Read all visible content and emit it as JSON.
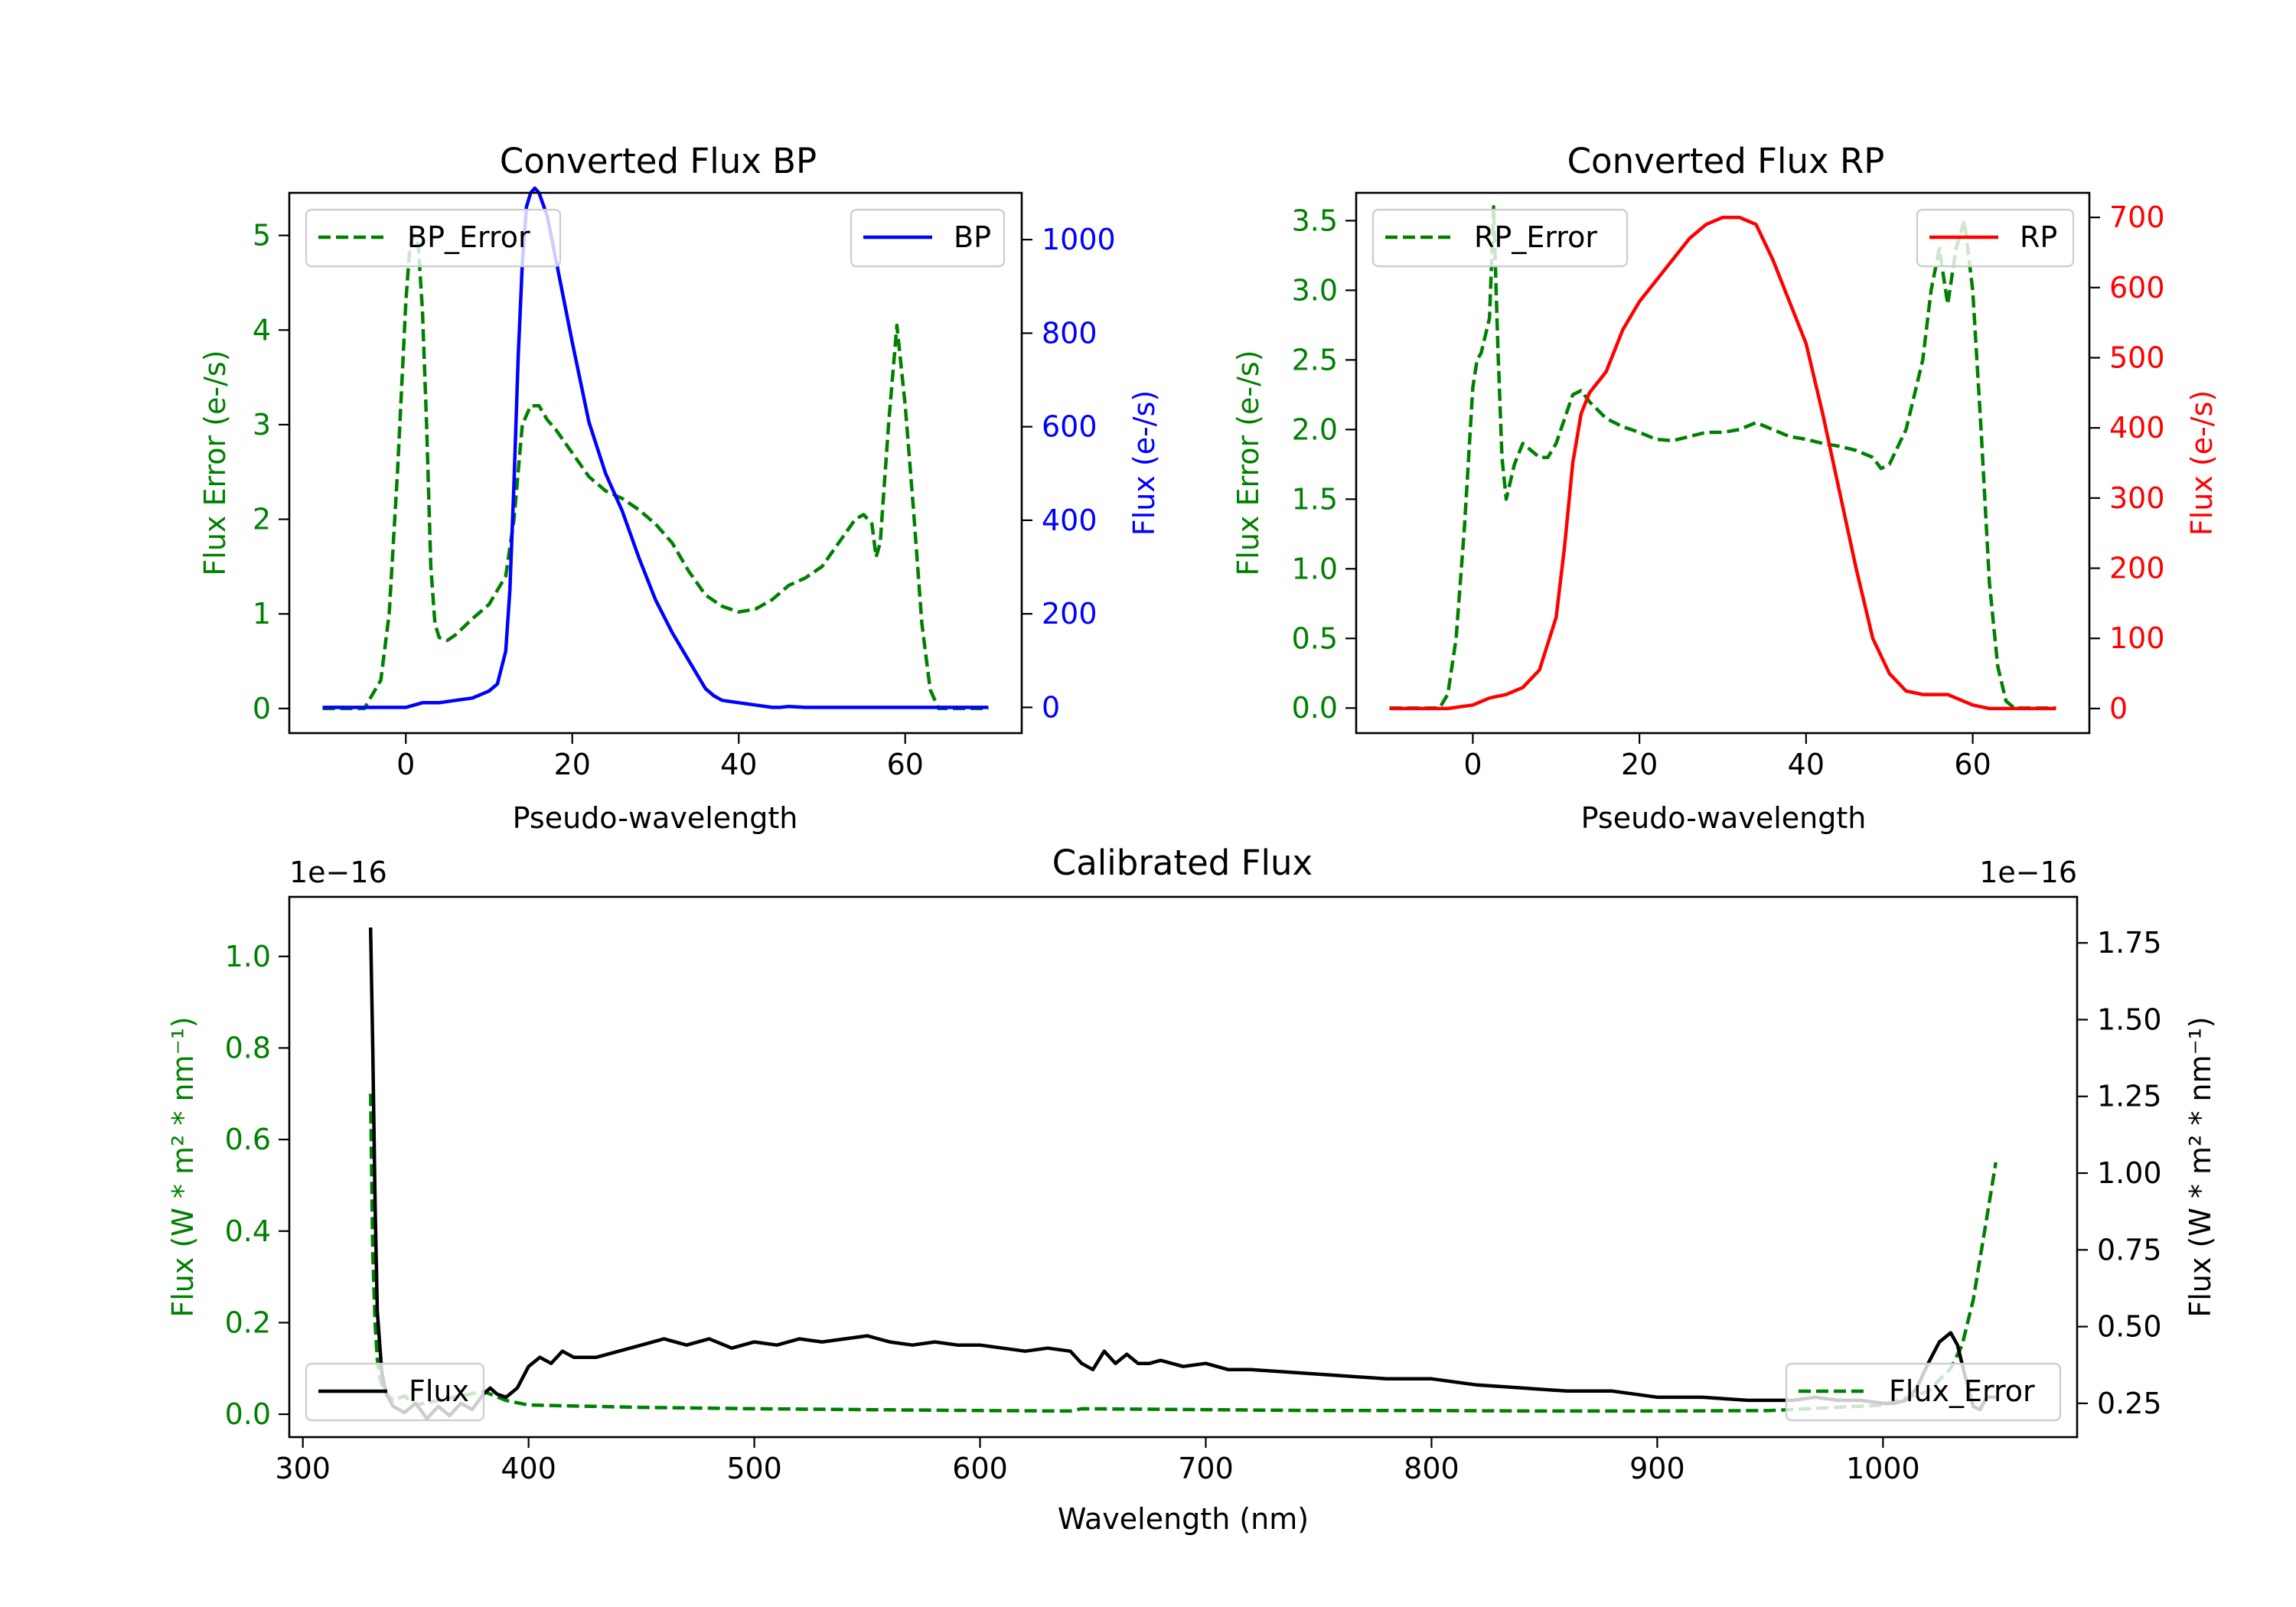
{
  "colors": {
    "bp": "#0000ff",
    "rp": "#ff0000",
    "error": "#008000",
    "flux": "#000000"
  },
  "chart_data": [
    {
      "id": "bp",
      "type": "line",
      "title": "Converted Flux BP",
      "xlabel": "Pseudo-wavelength",
      "ylabel_left": "Flux Error (e-/s)",
      "ylabel_right": "Flux (e-/s)",
      "xlim": [
        -14,
        74
      ],
      "ylim_left": [
        -0.26,
        5.45
      ],
      "ylim_right": [
        -55,
        1100
      ],
      "xticks": [
        "0",
        "20",
        "40",
        "60"
      ],
      "yticks_left": [
        "0",
        "1",
        "2",
        "3",
        "4",
        "5"
      ],
      "yticks_right": [
        "0",
        "200",
        "400",
        "600",
        "800",
        "1000"
      ],
      "legend_left": "BP_Error",
      "legend_right": "BP",
      "series": [
        {
          "name": "BP_Error",
          "axis": "left",
          "style": "dashed",
          "color": "#008000",
          "x": [
            -10,
            -5,
            -3,
            -2,
            -1,
            0,
            0.5,
            1,
            1.5,
            2,
            2.5,
            3,
            3.5,
            4,
            5,
            6,
            8,
            10,
            12,
            13,
            14,
            15,
            16,
            17,
            18,
            20,
            22,
            24,
            26,
            28,
            30,
            32,
            34,
            36,
            38,
            40,
            42,
            44,
            46,
            48,
            50,
            52,
            54,
            55,
            56,
            56.5,
            57,
            58,
            59,
            60,
            61,
            62,
            63,
            64,
            65,
            70
          ],
          "y": [
            0,
            0,
            0.3,
            1.0,
            2.5,
            4.3,
            4.9,
            5.0,
            4.9,
            4.2,
            3.0,
            1.5,
            0.9,
            0.75,
            0.72,
            0.78,
            0.95,
            1.1,
            1.4,
            2.0,
            3.0,
            3.2,
            3.2,
            3.05,
            2.95,
            2.7,
            2.45,
            2.3,
            2.22,
            2.1,
            1.95,
            1.75,
            1.45,
            1.2,
            1.08,
            1.02,
            1.05,
            1.15,
            1.3,
            1.38,
            1.5,
            1.75,
            2.0,
            2.05,
            1.95,
            1.6,
            1.75,
            3.0,
            4.05,
            3.2,
            2.1,
            0.9,
            0.2,
            0,
            0,
            0
          ]
        },
        {
          "name": "BP",
          "axis": "right",
          "style": "solid",
          "color": "#0000ff",
          "x": [
            -10,
            0,
            2,
            4,
            6,
            8,
            10,
            11,
            12,
            12.5,
            13,
            13.5,
            14,
            14.5,
            15,
            15.5,
            16,
            17,
            18,
            20,
            22,
            24,
            26,
            28,
            30,
            32,
            34,
            36,
            37,
            38,
            40,
            42,
            44,
            45,
            46,
            48,
            50,
            52,
            54,
            56,
            58,
            60,
            62,
            64,
            66,
            68,
            70
          ],
          "y": [
            0,
            0,
            10,
            10,
            15,
            20,
            35,
            50,
            120,
            250,
            480,
            750,
            950,
            1070,
            1100,
            1110,
            1100,
            1050,
            960,
            780,
            610,
            500,
            420,
            320,
            230,
            160,
            100,
            40,
            25,
            15,
            10,
            5,
            0,
            0,
            2,
            0,
            0,
            0,
            0,
            0,
            0,
            0,
            0,
            0,
            0,
            0,
            0
          ]
        }
      ]
    },
    {
      "id": "rp",
      "type": "line",
      "title": "Converted Flux RP",
      "xlabel": "Pseudo-wavelength",
      "ylabel_left": "Flux Error (e-/s)",
      "ylabel_right": "Flux (e-/s)",
      "xlim": [
        -14,
        74
      ],
      "ylim_left": [
        -0.18,
        3.7
      ],
      "ylim_right": [
        -35,
        735
      ],
      "xticks": [
        "0",
        "20",
        "40",
        "60"
      ],
      "yticks_left": [
        "0.0",
        "0.5",
        "1.0",
        "1.5",
        "2.0",
        "2.5",
        "3.0",
        "3.5"
      ],
      "yticks_right": [
        "0",
        "100",
        "200",
        "300",
        "400",
        "500",
        "600",
        "700"
      ],
      "legend_left": "RP_Error",
      "legend_right": "RP",
      "series": [
        {
          "name": "RP_Error",
          "axis": "left",
          "style": "dashed",
          "color": "#008000",
          "x": [
            -10,
            -4,
            -3,
            -2,
            -1,
            0,
            0.5,
            1,
            2,
            2.5,
            3,
            3.5,
            4,
            5,
            6,
            7,
            8,
            9,
            10,
            12,
            13,
            14,
            16,
            18,
            20,
            22,
            24,
            26,
            28,
            30,
            32,
            34,
            36,
            38,
            40,
            42,
            44,
            46,
            48,
            49,
            50,
            52,
            54,
            55,
            56,
            57,
            58,
            59,
            60,
            61,
            62,
            63,
            64,
            65,
            70
          ],
          "y": [
            0,
            0,
            0.1,
            0.5,
            1.3,
            2.3,
            2.5,
            2.55,
            2.8,
            3.6,
            2.6,
            1.8,
            1.5,
            1.75,
            1.9,
            1.85,
            1.8,
            1.8,
            1.9,
            2.25,
            2.28,
            2.2,
            2.08,
            2.02,
            1.98,
            1.93,
            1.92,
            1.95,
            1.98,
            1.98,
            2.0,
            2.05,
            2.0,
            1.95,
            1.93,
            1.9,
            1.88,
            1.85,
            1.8,
            1.72,
            1.75,
            2.0,
            2.5,
            3.0,
            3.3,
            2.9,
            3.3,
            3.5,
            3.0,
            2.0,
            0.9,
            0.3,
            0.05,
            0,
            0
          ]
        },
        {
          "name": "RP",
          "axis": "right",
          "style": "solid",
          "color": "#ff0000",
          "x": [
            -10,
            -3,
            0,
            2,
            4,
            6,
            8,
            10,
            11,
            12,
            13,
            14,
            16,
            18,
            20,
            22,
            24,
            26,
            28,
            30,
            32,
            34,
            36,
            38,
            40,
            42,
            44,
            46,
            48,
            50,
            52,
            54,
            56,
            57,
            58,
            60,
            62,
            70
          ],
          "y": [
            0,
            0,
            5,
            15,
            20,
            30,
            55,
            130,
            230,
            350,
            420,
            450,
            480,
            540,
            580,
            610,
            640,
            670,
            690,
            700,
            700,
            690,
            640,
            580,
            520,
            420,
            310,
            200,
            100,
            50,
            25,
            20,
            20,
            20,
            15,
            5,
            0,
            0
          ]
        }
      ]
    },
    {
      "id": "calibrated",
      "type": "line",
      "title": "Calibrated Flux",
      "xlabel": "Wavelength (nm)",
      "ylabel_left": "Flux (W * m² * nm⁻¹)",
      "ylabel_right": "Flux (W * m² * nm⁻¹)",
      "offset_left": "1e−16",
      "offset_right": "1e−16",
      "xlim": [
        294,
        1086
      ],
      "ylim_left": [
        -0.05,
        1.13
      ],
      "ylim_right": [
        0.14,
        1.9
      ],
      "xticks": [
        "300",
        "400",
        "500",
        "600",
        "700",
        "800",
        "900",
        "1000"
      ],
      "yticks_left": [
        "0.0",
        "0.2",
        "0.4",
        "0.6",
        "0.8",
        "1.0"
      ],
      "yticks_right": [
        "0.25",
        "0.50",
        "0.75",
        "1.00",
        "1.25",
        "1.50",
        "1.75"
      ],
      "legend_left": "Flux",
      "legend_right": "Flux_Error",
      "series": [
        {
          "name": "Flux_Error",
          "axis": "left",
          "style": "dashed",
          "color": "#008000",
          "x": [
            330,
            331,
            332,
            333,
            334,
            336,
            340,
            345,
            350,
            360,
            370,
            380,
            390,
            400,
            450,
            500,
            550,
            600,
            640,
            645,
            700,
            750,
            800,
            850,
            900,
            950,
            1000,
            1020,
            1030,
            1035,
            1040,
            1045,
            1050
          ],
          "y": [
            0.7,
            0.35,
            0.2,
            0.12,
            0.08,
            0.05,
            0.03,
            0.04,
            0.02,
            0.03,
            0.04,
            0.05,
            0.03,
            0.02,
            0.015,
            0.012,
            0.01,
            0.008,
            0.007,
            0.012,
            0.01,
            0.008,
            0.008,
            0.007,
            0.007,
            0.008,
            0.02,
            0.05,
            0.1,
            0.15,
            0.25,
            0.4,
            0.55
          ]
        },
        {
          "name": "Flux",
          "axis": "right",
          "style": "solid",
          "color": "#000000",
          "x": [
            330,
            331,
            332,
            333,
            335,
            337,
            340,
            345,
            350,
            355,
            360,
            365,
            370,
            375,
            380,
            383,
            386,
            390,
            395,
            400,
            405,
            410,
            415,
            420,
            430,
            440,
            450,
            460,
            470,
            480,
            490,
            500,
            510,
            520,
            530,
            540,
            550,
            560,
            570,
            580,
            590,
            600,
            610,
            620,
            630,
            640,
            645,
            650,
            655,
            660,
            665,
            670,
            675,
            680,
            690,
            700,
            710,
            720,
            740,
            760,
            780,
            800,
            820,
            840,
            860,
            880,
            890,
            900,
            920,
            940,
            960,
            970,
            980,
            990,
            1000,
            1005,
            1010,
            1015,
            1020,
            1025,
            1030,
            1033,
            1036,
            1040,
            1043,
            1046,
            1050
          ],
          "y": [
            1.8,
            1.4,
            0.9,
            0.55,
            0.35,
            0.28,
            0.24,
            0.22,
            0.25,
            0.2,
            0.24,
            0.21,
            0.25,
            0.23,
            0.28,
            0.3,
            0.28,
            0.27,
            0.3,
            0.37,
            0.4,
            0.38,
            0.42,
            0.4,
            0.4,
            0.42,
            0.44,
            0.46,
            0.44,
            0.46,
            0.43,
            0.45,
            0.44,
            0.46,
            0.45,
            0.46,
            0.47,
            0.45,
            0.44,
            0.45,
            0.44,
            0.44,
            0.43,
            0.42,
            0.43,
            0.42,
            0.38,
            0.36,
            0.42,
            0.38,
            0.41,
            0.38,
            0.38,
            0.39,
            0.37,
            0.38,
            0.36,
            0.36,
            0.35,
            0.34,
            0.33,
            0.33,
            0.31,
            0.3,
            0.29,
            0.29,
            0.28,
            0.27,
            0.27,
            0.26,
            0.26,
            0.27,
            0.26,
            0.26,
            0.25,
            0.25,
            0.26,
            0.3,
            0.38,
            0.45,
            0.48,
            0.44,
            0.35,
            0.24,
            0.23,
            0.27,
            0.27
          ]
        }
      ]
    }
  ]
}
